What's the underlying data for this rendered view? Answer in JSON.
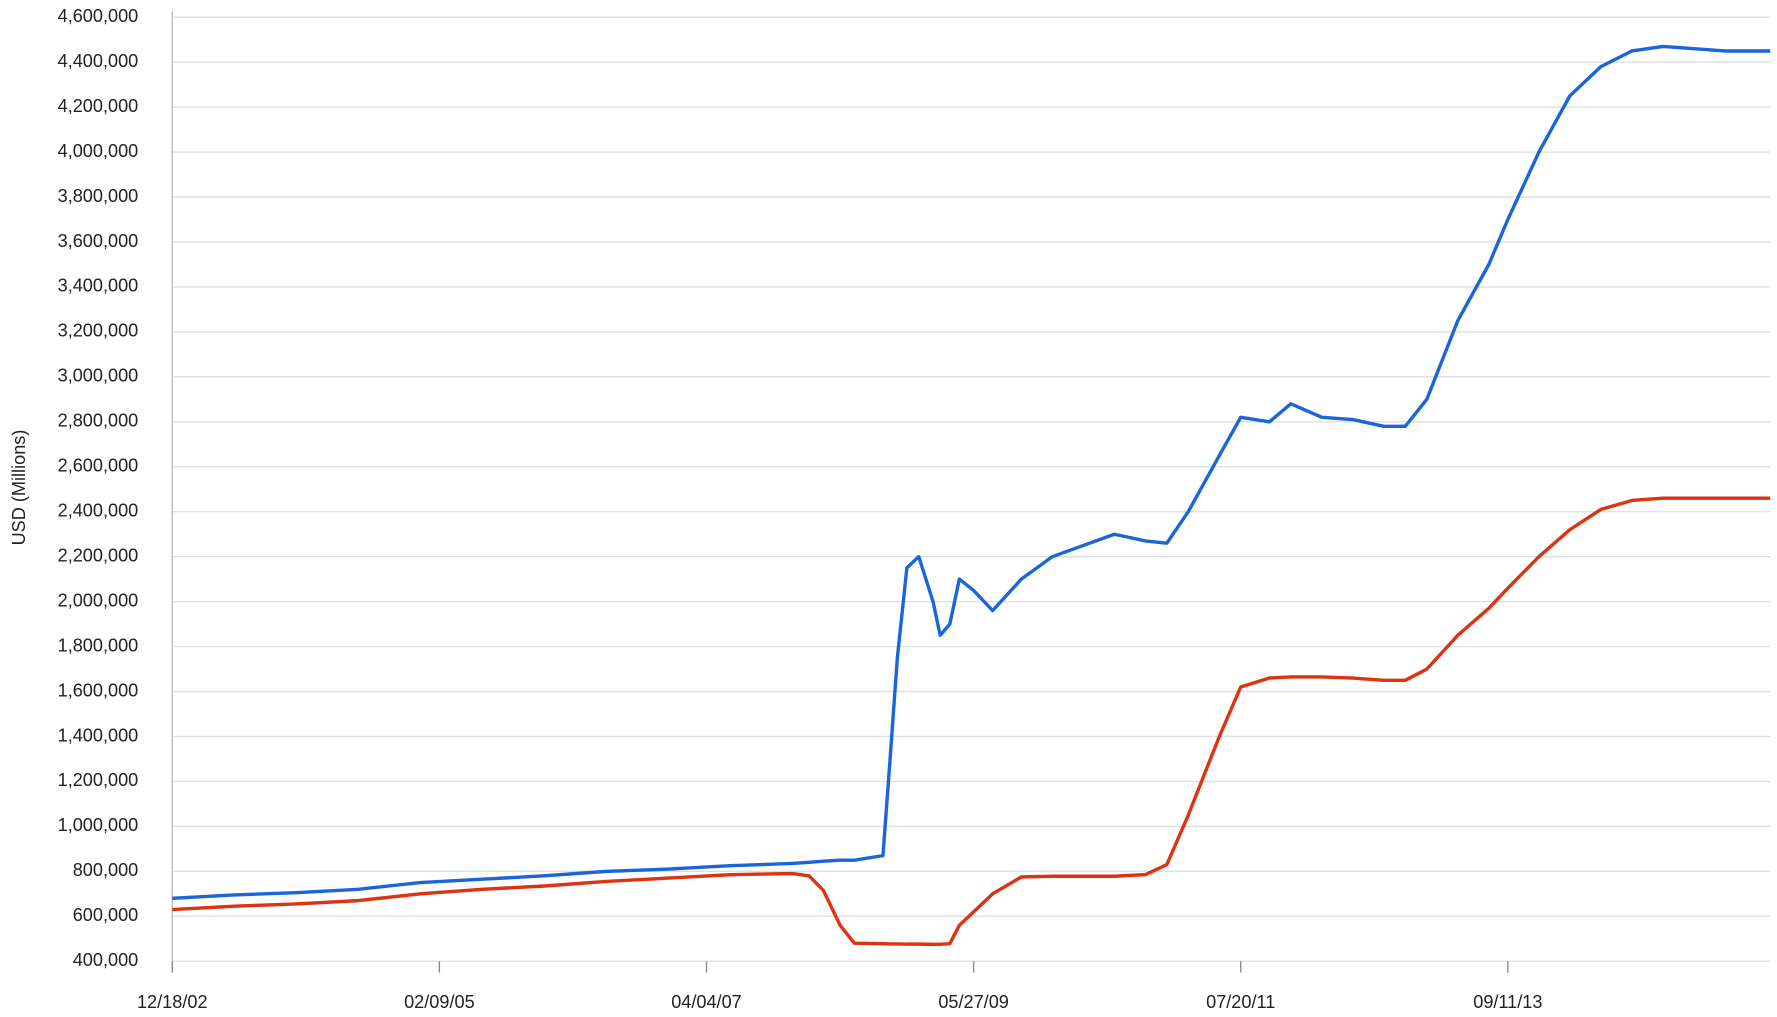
{
  "chart_data": {
    "type": "line",
    "y_label": "USD (Millions)",
    "x": [
      "12/18/02",
      "06/18/03",
      "12/17/03",
      "06/16/04",
      "12/15/04",
      "06/15/05",
      "12/14/05",
      "06/14/06",
      "12/13/06",
      "06/13/07",
      "12/12/07",
      "01/30/08",
      "03/12/08",
      "04/30/08",
      "06/11/08",
      "09/03/08",
      "09/24/08",
      "10/15/08",
      "11/12/08",
      "12/17/08",
      "01/28/09",
      "02/18/09",
      "03/18/09",
      "04/15/09",
      "05/27/09",
      "07/22/09",
      "10/14/09",
      "01/13/10",
      "04/14/10",
      "07/14/10",
      "10/13/10",
      "12/15/10",
      "02/16/11",
      "05/18/11",
      "07/20/11",
      "10/12/11",
      "12/14/11",
      "03/14/12",
      "06/13/12",
      "09/12/12",
      "11/14/12",
      "01/16/13",
      "04/17/13",
      "07/17/13",
      "09/11/13",
      "12/11/13",
      "03/12/14",
      "06/11/14",
      "09/10/14",
      "12/10/14",
      "03/11/15",
      "06/10/15",
      "10/21/15"
    ],
    "series": [
      {
        "color": "#1a66d9",
        "values": [
          680000,
          695000,
          705000,
          720000,
          750000,
          765000,
          780000,
          800000,
          810000,
          825000,
          835000,
          840000,
          845000,
          850000,
          850000,
          870000,
          1300000,
          1750000,
          2150000,
          2200000,
          2000000,
          1850000,
          1900000,
          2100000,
          2050000,
          1960000,
          2100000,
          2200000,
          2250000,
          2300000,
          2270000,
          2260000,
          2400000,
          2650000,
          2820000,
          2800000,
          2880000,
          2820000,
          2810000,
          2780000,
          2780000,
          2900000,
          3250000,
          3500000,
          3700000,
          4000000,
          4250000,
          4380000,
          4450000,
          4470000,
          4460000,
          4450000,
          4450000
        ]
      },
      {
        "color": "#dd3311",
        "values": [
          630000,
          645000,
          655000,
          670000,
          700000,
          720000,
          735000,
          755000,
          770000,
          785000,
          790000,
          780000,
          715000,
          560000,
          480000,
          478000,
          477000,
          477000,
          476000,
          476000,
          475000,
          475000,
          478000,
          560000,
          620000,
          700000,
          775000,
          778000,
          778000,
          778000,
          785000,
          830000,
          1050000,
          1400000,
          1620000,
          1660000,
          1665000,
          1665000,
          1660000,
          1650000,
          1650000,
          1700000,
          1850000,
          1970000,
          2060000,
          2200000,
          2320000,
          2410000,
          2450000,
          2460000,
          2460000,
          2460000,
          2460000
        ]
      }
    ],
    "xlim": [
      "12/18/02",
      "10/21/15"
    ],
    "xticks": [
      "12/18/02",
      "02/09/05",
      "04/04/07",
      "05/27/09",
      "07/20/11",
      "09/11/13"
    ],
    "ylim": [
      400000,
      4600000
    ],
    "yticks": [
      {
        "value": 400000,
        "label": "400,000"
      },
      {
        "value": 600000,
        "label": "600,000"
      },
      {
        "value": 800000,
        "label": "800,000"
      },
      {
        "value": 1000000,
        "label": "1,000,000"
      },
      {
        "value": 1200000,
        "label": "1,200,000"
      },
      {
        "value": 1400000,
        "label": "1,400,000"
      },
      {
        "value": 1600000,
        "label": "1,600,000"
      },
      {
        "value": 1800000,
        "label": "1,800,000"
      },
      {
        "value": 2000000,
        "label": "2,000,000"
      },
      {
        "value": 2200000,
        "label": "2,200,000"
      },
      {
        "value": 2400000,
        "label": "2,400,000"
      },
      {
        "value": 2600000,
        "label": "2,600,000"
      },
      {
        "value": 2800000,
        "label": "2,800,000"
      },
      {
        "value": 3000000,
        "label": "3,000,000"
      },
      {
        "value": 3200000,
        "label": "3,200,000"
      },
      {
        "value": 3400000,
        "label": "3,400,000"
      },
      {
        "value": 3600000,
        "label": "3,600,000"
      },
      {
        "value": 3800000,
        "label": "3,800,000"
      },
      {
        "value": 4000000,
        "label": "4,000,000"
      },
      {
        "value": 4200000,
        "label": "4,200,000"
      },
      {
        "value": 4400000,
        "label": "4,400,000"
      },
      {
        "value": 4600000,
        "label": "4,600,000"
      }
    ],
    "grid": true
  }
}
